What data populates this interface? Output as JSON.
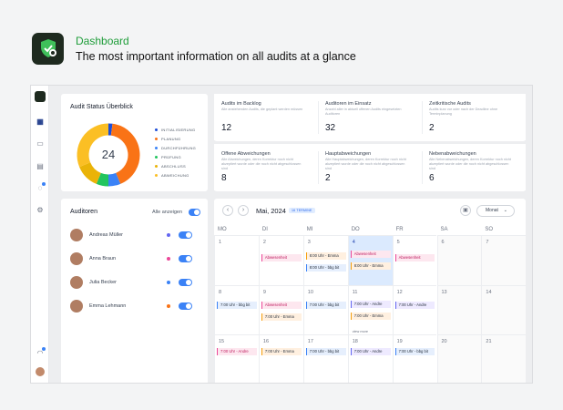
{
  "hero": {
    "title": "Dashboard",
    "subtitle": "The most important information on all audits at a glance"
  },
  "colors": {
    "brand_green": "#1f9d3a",
    "accent_blue": "#3b82f6",
    "dark": "#1e2a1f"
  },
  "rail": {
    "icons": [
      "grid-icon",
      "calendar-icon",
      "id-card-icon",
      "chat-icon",
      "settings-icon",
      "bell-icon"
    ]
  },
  "status": {
    "title": "Audit Status Überblick",
    "center_value": "24",
    "chart_data": {
      "type": "pie",
      "labels": [
        "INITIALISIERUNG",
        "PLANUNG",
        "DURCHFÜHRUNG",
        "PRÜFUNG",
        "ABSCHLUSS",
        "ABWEICHUNG"
      ],
      "values": [
        0.5,
        10,
        1.5,
        1.5,
        3,
        7.5
      ],
      "colors": [
        "#1d4ed8",
        "#f97316",
        "#3b82f6",
        "#22c55e",
        "#eab308",
        "#fbbf24"
      ]
    }
  },
  "stats": [
    {
      "title": "Audits im Backlog",
      "desc": "Alle anstehenden Audits, die geplant werden müssen",
      "value": "12"
    },
    {
      "title": "Auditoren im Einsatz",
      "desc": "Anzahl aller in aktuell offenen Audits eingesetzten Auditoren",
      "value": "32"
    },
    {
      "title": "Zeitkritische Audits",
      "desc": "Audits kurz vor oder nach der Deadline ohne Terminplanung",
      "value": "2"
    },
    {
      "title": "Offene Abweichungen",
      "desc": "Alle Abweichungen, deren Korrektur noch nicht akzeptiert wurde oder die noch nicht abgeschlossen sind",
      "value": "8"
    },
    {
      "title": "Hauptabweichungen",
      "desc": "Alle Hauptabweichungen, deren Korrektur noch nicht akzeptiert wurde oder die noch nicht abgeschlossen sind",
      "value": "2"
    },
    {
      "title": "Nebenabweichungen",
      "desc": "Alle Nebenabweichungen, deren Korrektur noch nicht akzeptiert wurde oder die noch nicht abgeschlossen sind",
      "value": "6"
    }
  ],
  "auditors": {
    "title": "Auditoren",
    "show_all_label": "Alle anzeigen",
    "list": [
      {
        "name": "Andreas Müller",
        "color": "#6366f1"
      },
      {
        "name": "Anna Braun",
        "color": "#ec4899"
      },
      {
        "name": "Julia Becker",
        "color": "#3b82f6"
      },
      {
        "name": "Emma Lehmann",
        "color": "#f97316"
      }
    ]
  },
  "calendar": {
    "month": "Mai, 2024",
    "badge": "16 TERMINE",
    "view": "Monat",
    "weekdays": [
      "MO",
      "DI",
      "MI",
      "DO",
      "FR",
      "SA",
      "SO"
    ],
    "weeks": [
      [
        "1",
        "2",
        "3",
        "4",
        "5",
        "6",
        "7"
      ],
      [
        "8",
        "9",
        "10",
        "11",
        "12",
        "13",
        "14"
      ],
      [
        "15",
        "16",
        "17",
        "18",
        "19",
        "20",
        "21"
      ]
    ],
    "events": {
      "abwesenheit": "Abwesenheit",
      "ev_800_emma": "8:00 Uhr - Emma",
      "ev_800_bbg": "8:00 Uhr - bbg bit",
      "ev_800_emma2": "8:00 Uhr - Emma",
      "ev_700_bbg": "7:00 Uhr - bbg bit",
      "ev_700_emma": "7:00 Uhr - Emma",
      "ev_700_bbg2": "7:00 Uhr - bbg bit",
      "ev_700_andre": "7:00 Uhr - Andre",
      "ev_700_emma2": "7:00 Uhr - Emma",
      "ev_700_andre2": "7:00 Uhr - Andre",
      "ev_700_andre3": "7:00 Uhr - Andre",
      "ev_700_emma3": "7:00 Uhr - Emma",
      "ev_700_bbg3": "7:00 Uhr - bbg bit",
      "ev_700_andre4": "7:00 Uhr - Andre",
      "ev_700_bbg4": "7:00 Uhr - bbg bit",
      "more": "view more"
    }
  }
}
